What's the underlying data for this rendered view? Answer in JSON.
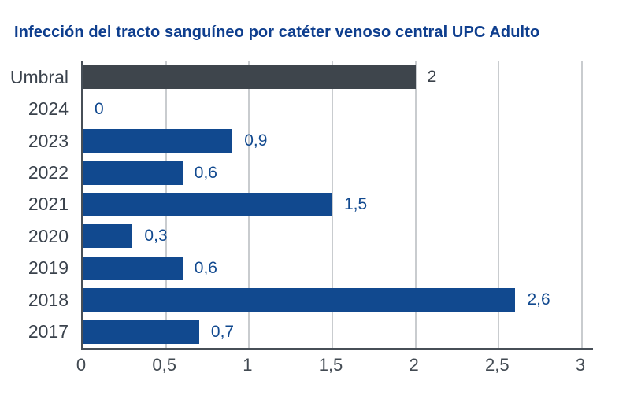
{
  "title": "Infección del tracto sanguíneo por catéter venoso central UPC Adulto",
  "chart_data": {
    "type": "bar",
    "orientation": "horizontal",
    "title": "Infección del tracto sanguíneo por catéter venoso central UPC Adulto",
    "categories": [
      "Umbral",
      "2024",
      "2023",
      "2022",
      "2021",
      "2020",
      "2019",
      "2018",
      "2017"
    ],
    "values": [
      2,
      0,
      0.9,
      0.6,
      1.5,
      0.3,
      0.6,
      2.6,
      0.7
    ],
    "rows": [
      {
        "category": "Umbral",
        "value": 2,
        "label": "2",
        "variant": "threshold"
      },
      {
        "category": "2024",
        "value": 0,
        "label": "0",
        "variant": "year"
      },
      {
        "category": "2023",
        "value": 0.9,
        "label": "0,9",
        "variant": "year"
      },
      {
        "category": "2022",
        "value": 0.6,
        "label": "0,6",
        "variant": "year"
      },
      {
        "category": "2021",
        "value": 1.5,
        "label": "1,5",
        "variant": "year"
      },
      {
        "category": "2020",
        "value": 0.3,
        "label": "0,3",
        "variant": "year"
      },
      {
        "category": "2019",
        "value": 0.6,
        "label": "0,6",
        "variant": "year"
      },
      {
        "category": "2018",
        "value": 2.6,
        "label": "2,6",
        "variant": "year"
      },
      {
        "category": "2017",
        "value": 0.7,
        "label": "0,7",
        "variant": "year"
      }
    ],
    "xlim": [
      0,
      3
    ],
    "x_ticks": [
      0,
      0.5,
      1,
      1.5,
      2,
      2.5,
      3
    ],
    "x_tick_labels": [
      "0",
      "0,5",
      "1",
      "1,5",
      "2",
      "2,5",
      "3"
    ],
    "grid": "vertical gridlines every 0.5, shown behind bars",
    "legend": "none",
    "value_labels_position": "right of bar end"
  },
  "colors": {
    "background": "#ffffff",
    "title_text": "#0e3e8e",
    "bar_blue": "#11498f",
    "threshold_bar_gray": "#3e454c",
    "value_label_blue": "#11498f",
    "threshold_value_label": "#3a414a",
    "category_label_text": "#3a424c",
    "tick_label_text": "#424a52",
    "gridline": "#c9cccf",
    "axis_line": "#474f57"
  }
}
